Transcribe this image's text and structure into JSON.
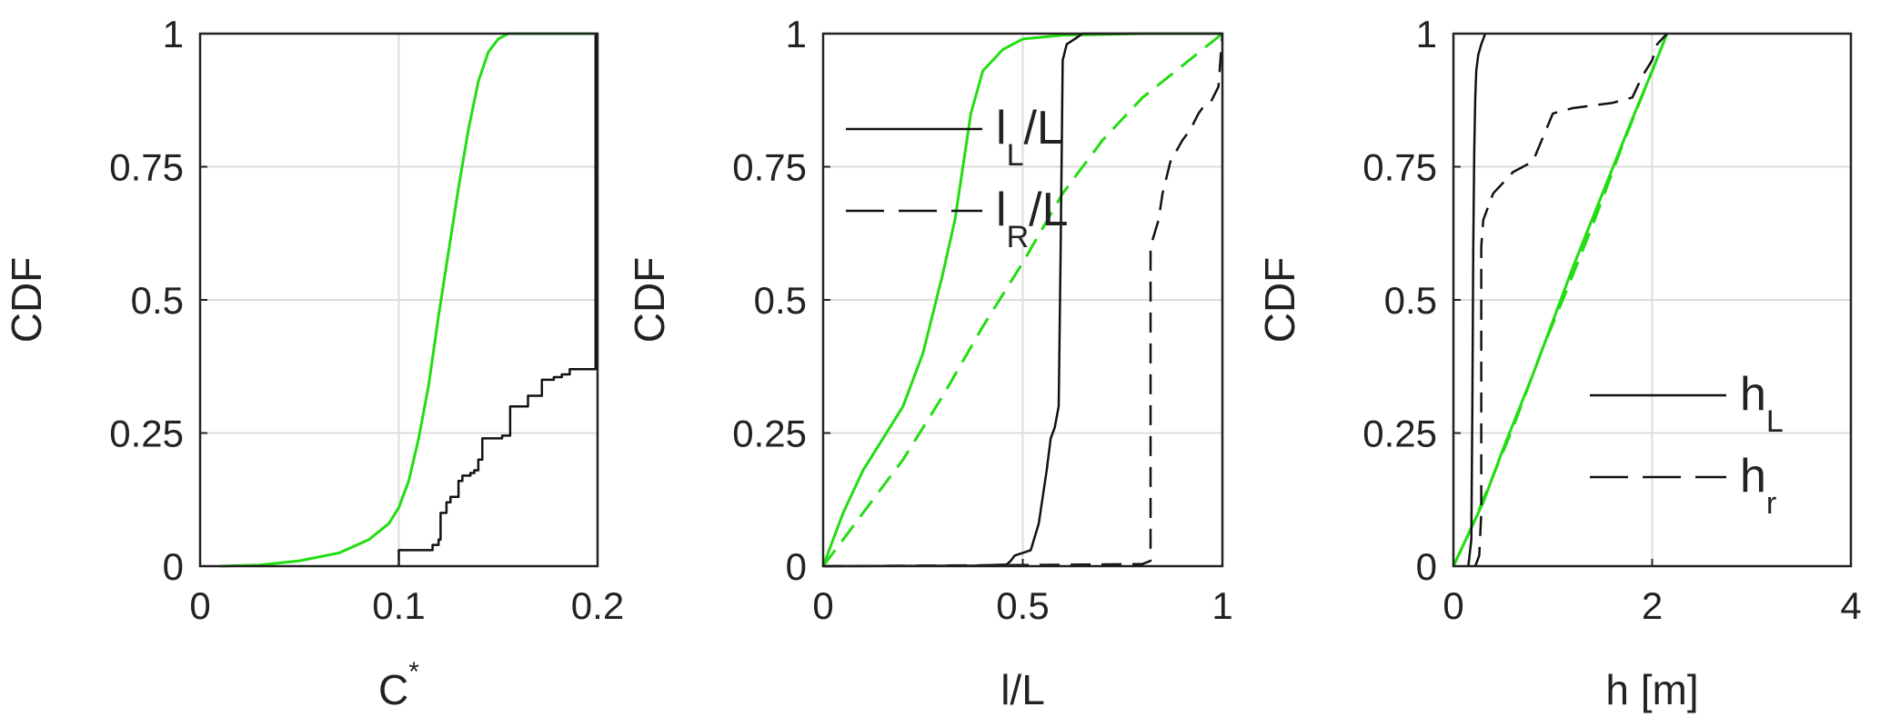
{
  "colors": {
    "green": "#22dd11",
    "black": "#111111",
    "grid": "#dcdcdc",
    "axis": "#222222"
  },
  "chart_data": [
    {
      "type": "line",
      "xlabel": "C*",
      "ylabel": "CDF",
      "xlim": [
        0,
        0.2
      ],
      "ylim": [
        0,
        1
      ],
      "xticks": [
        "0",
        "0.1",
        "0.2"
      ],
      "yticks": [
        "0",
        "0.25",
        "0.5",
        "0.75",
        "1"
      ],
      "grid": true,
      "series": [
        {
          "style": "solid",
          "color": "green",
          "x": [
            0.01,
            0.03,
            0.05,
            0.07,
            0.085,
            0.095,
            0.1,
            0.105,
            0.11,
            0.115,
            0.12,
            0.125,
            0.13,
            0.135,
            0.14,
            0.145,
            0.15,
            0.155,
            0.16,
            0.2
          ],
          "y": [
            0,
            0.002,
            0.01,
            0.025,
            0.05,
            0.08,
            0.11,
            0.16,
            0.24,
            0.34,
            0.47,
            0.59,
            0.71,
            0.82,
            0.91,
            0.965,
            0.99,
            1,
            1,
            1
          ]
        },
        {
          "style": "steps",
          "color": "black",
          "x": [
            0.1,
            0.1,
            0.117,
            0.12,
            0.121,
            0.124,
            0.126,
            0.13,
            0.132,
            0.136,
            0.138,
            0.14,
            0.142,
            0.152,
            0.156,
            0.165,
            0.172,
            0.178,
            0.182,
            0.186,
            0.192,
            0.199,
            0.199
          ],
          "y": [
            0,
            0.03,
            0.04,
            0.05,
            0.1,
            0.12,
            0.13,
            0.16,
            0.17,
            0.175,
            0.18,
            0.2,
            0.24,
            0.245,
            0.3,
            0.32,
            0.35,
            0.355,
            0.36,
            0.37,
            0.37,
            0.37,
            1
          ]
        }
      ]
    },
    {
      "type": "line",
      "xlabel": "l/L",
      "ylabel": "CDF",
      "xlim": [
        0,
        1
      ],
      "ylim": [
        0,
        1
      ],
      "xticks": [
        "0",
        "0.5",
        "1"
      ],
      "yticks": [
        "0",
        "0.25",
        "0.5",
        "0.75",
        "1"
      ],
      "grid": true,
      "legend": [
        {
          "main": "l",
          "sub": "L",
          "suffix": "/L",
          "style": "solid"
        },
        {
          "main": "l",
          "sub": "R",
          "suffix": "/L",
          "style": "dashed"
        }
      ],
      "legend_position": "top-left",
      "series": [
        {
          "style": "solid",
          "color": "green",
          "x": [
            0,
            0.05,
            0.1,
            0.15,
            0.2,
            0.25,
            0.3,
            0.33,
            0.35,
            0.37,
            0.4,
            0.45,
            0.5,
            0.6,
            0.8,
            1
          ],
          "y": [
            0,
            0.1,
            0.18,
            0.24,
            0.3,
            0.4,
            0.55,
            0.65,
            0.75,
            0.85,
            0.93,
            0.97,
            0.99,
            0.997,
            1,
            1
          ]
        },
        {
          "style": "dashed",
          "color": "green",
          "x": [
            0,
            0.1,
            0.2,
            0.3,
            0.4,
            0.5,
            0.6,
            0.7,
            0.8,
            0.9,
            0.95,
            1
          ],
          "y": [
            0,
            0.1,
            0.2,
            0.32,
            0.45,
            0.57,
            0.7,
            0.8,
            0.88,
            0.94,
            0.97,
            1
          ]
        },
        {
          "style": "solid",
          "color": "black",
          "x": [
            0,
            0.38,
            0.46,
            0.47,
            0.48,
            0.5,
            0.52,
            0.54,
            0.56,
            0.57,
            0.58,
            0.585,
            0.59,
            0.595,
            0.6,
            0.61,
            0.63,
            0.65,
            0.7,
            1
          ],
          "y": [
            0,
            0.001,
            0.003,
            0.01,
            0.02,
            0.025,
            0.03,
            0.08,
            0.18,
            0.24,
            0.26,
            0.28,
            0.3,
            0.6,
            0.95,
            0.98,
            0.99,
            1,
            1,
            1
          ]
        },
        {
          "style": "dashed",
          "color": "black",
          "x": [
            0,
            0.5,
            0.8,
            0.82,
            0.82,
            0.84,
            0.85,
            0.87,
            0.9,
            0.92,
            0.94,
            0.95,
            0.97,
            0.99,
            1
          ],
          "y": [
            0,
            0.002,
            0.004,
            0.01,
            0.6,
            0.65,
            0.7,
            0.76,
            0.8,
            0.82,
            0.85,
            0.86,
            0.87,
            0.9,
            1
          ]
        }
      ]
    },
    {
      "type": "line",
      "xlabel": "h [m]",
      "ylabel": "CDF",
      "xlim": [
        0,
        4
      ],
      "ylim": [
        0,
        1
      ],
      "xticks": [
        "0",
        "2",
        "4"
      ],
      "yticks": [
        "0",
        "0.25",
        "0.5",
        "0.75",
        "1"
      ],
      "grid": true,
      "legend": [
        {
          "main": "h",
          "sub": "L",
          "suffix": "",
          "style": "solid"
        },
        {
          "main": "h",
          "sub": "r",
          "suffix": "",
          "style": "dashed"
        }
      ],
      "legend_position": "bottom-right",
      "series": [
        {
          "style": "solid",
          "color": "green",
          "x": [
            0,
            0.1,
            0.3,
            0.5,
            0.8,
            1.0,
            1.2,
            1.5,
            1.8,
            2.0,
            2.15
          ],
          "y": [
            0,
            0.04,
            0.12,
            0.22,
            0.36,
            0.46,
            0.56,
            0.7,
            0.84,
            0.93,
            1
          ]
        },
        {
          "style": "dashed",
          "color": "green",
          "x": [
            0,
            0.2,
            0.4,
            0.6,
            0.9,
            1.1,
            1.4,
            1.7,
            2.0,
            2.15
          ],
          "y": [
            0,
            0.08,
            0.17,
            0.26,
            0.41,
            0.5,
            0.64,
            0.79,
            0.93,
            1
          ]
        },
        {
          "style": "solid",
          "color": "black",
          "x": [
            0.15,
            0.18,
            0.19,
            0.2,
            0.21,
            0.22,
            0.23,
            0.25,
            0.28,
            0.3,
            0.32
          ],
          "y": [
            0,
            0.05,
            0.3,
            0.6,
            0.78,
            0.88,
            0.93,
            0.96,
            0.98,
            0.99,
            1
          ]
        },
        {
          "style": "dashed",
          "color": "black",
          "x": [
            0.22,
            0.26,
            0.28,
            0.28,
            0.3,
            0.4,
            0.5,
            0.6,
            0.8,
            1.0,
            1.2,
            1.6,
            1.8,
            1.9,
            2.0,
            2.05,
            2.1,
            2.15
          ],
          "y": [
            0,
            0.02,
            0.1,
            0.6,
            0.65,
            0.7,
            0.72,
            0.74,
            0.76,
            0.85,
            0.86,
            0.87,
            0.88,
            0.92,
            0.95,
            0.98,
            0.99,
            1
          ]
        }
      ]
    }
  ]
}
